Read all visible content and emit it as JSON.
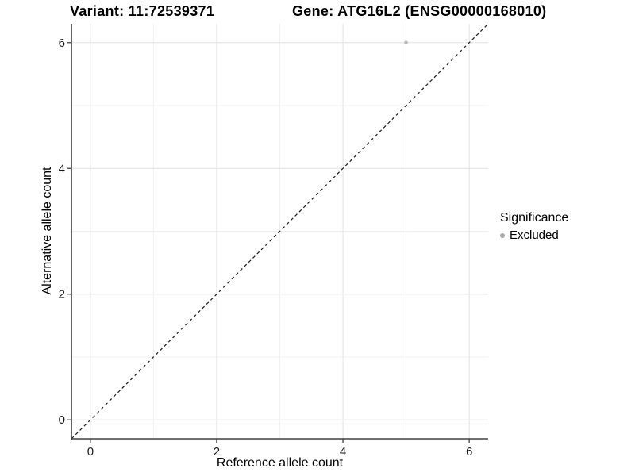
{
  "titles": {
    "variant": "Variant: 11:72539371",
    "gene": "Gene: ATG16L2 (ENSG00000168010)"
  },
  "chart_data": {
    "type": "scatter",
    "xlabel": "Reference allele count",
    "ylabel": "Alternative allele count",
    "xticks": [
      0,
      2,
      4,
      6
    ],
    "yticks": [
      0,
      2,
      4,
      6
    ],
    "minor_xticks": [
      1,
      3,
      5
    ],
    "minor_yticks": [
      1,
      3,
      5
    ],
    "xlim": [
      -0.3,
      6.3
    ],
    "ylim": [
      -0.3,
      6.3
    ],
    "grid": "major+minor",
    "points": [
      {
        "x": 5,
        "y": 6,
        "series": "Excluded"
      }
    ],
    "identity_line": {
      "slope": 1,
      "intercept": 0,
      "style": "dashed"
    },
    "legend": {
      "title": "Significance",
      "position": "right",
      "items": [
        {
          "label": "Excluded",
          "color": "#a8a8a8"
        }
      ]
    },
    "colors": {
      "point": "#bcbcbc",
      "grid_major": "#e6e6e6",
      "grid_minor": "#f0f0f0",
      "axis_line": "#404040",
      "tick_label": "#1a1a1a",
      "identity_line": "#1a1a1a"
    }
  }
}
